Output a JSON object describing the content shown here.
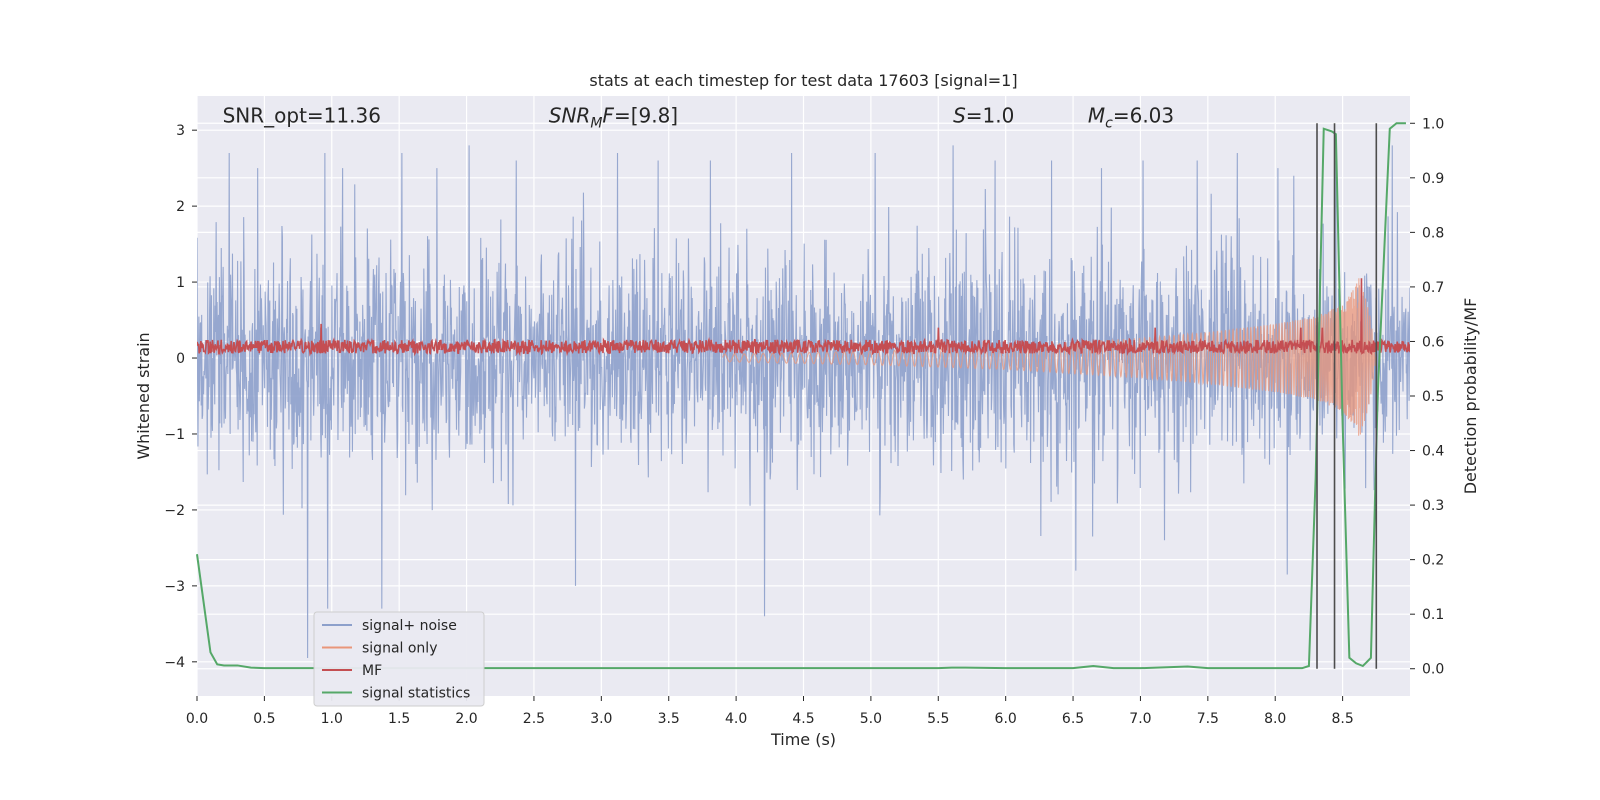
{
  "chart_data": {
    "type": "line",
    "title": "stats at each timestep for test data 17603 [signal=1]",
    "xlabel": "Time (s)",
    "ylabel": "Whitened strain",
    "y2label": "Detection probability/MF",
    "xlim": [
      0.0,
      9.0
    ],
    "ylim": [
      -4.45,
      3.45
    ],
    "y2lim": [
      -0.05,
      1.05
    ],
    "x_ticks": [
      0.0,
      0.5,
      1.0,
      1.5,
      2.0,
      2.5,
      3.0,
      3.5,
      4.0,
      4.5,
      5.0,
      5.5,
      6.0,
      6.5,
      7.0,
      7.5,
      8.0,
      8.5
    ],
    "x_tick_labels": [
      "0.0",
      "0.5",
      "1.0",
      "1.5",
      "2.0",
      "2.5",
      "3.0",
      "3.5",
      "4.0",
      "4.5",
      "5.0",
      "5.5",
      "6.0",
      "6.5",
      "7.0",
      "7.5",
      "8.0",
      "8.5"
    ],
    "y_ticks": [
      -4,
      -3,
      -2,
      -1,
      0,
      1,
      2,
      3
    ],
    "y_tick_labels": [
      "−4",
      "−3",
      "−2",
      "−1",
      "0",
      "1",
      "2",
      "3"
    ],
    "y2_ticks": [
      0.0,
      0.1,
      0.2,
      0.3,
      0.4,
      0.5,
      0.6,
      0.7,
      0.8,
      0.9,
      1.0
    ],
    "y2_tick_labels": [
      "0.0",
      "0.1",
      "0.2",
      "0.3",
      "0.4",
      "0.5",
      "0.6",
      "0.7",
      "0.8",
      "0.9",
      "1.0"
    ],
    "grid": true,
    "legend_position": "lower-left",
    "annotations": [
      {
        "name": "snr-opt",
        "parts": [
          {
            "text": "SNR_opt=11.36",
            "italic": false
          }
        ]
      },
      {
        "name": "snr-mf",
        "parts": [
          {
            "text": "SNR",
            "italic": true
          },
          {
            "text": "M",
            "italic": true,
            "sub": true
          },
          {
            "text": "F",
            "italic": true
          },
          {
            "text": "=[9.8]",
            "italic": false
          }
        ]
      },
      {
        "name": "s-value",
        "parts": [
          {
            "text": "S",
            "italic": true
          },
          {
            "text": "=1.0",
            "italic": false
          }
        ]
      },
      {
        "name": "chirp-mass",
        "parts": [
          {
            "text": "M",
            "italic": true
          },
          {
            "text": "c",
            "italic": true,
            "sub": true
          },
          {
            "text": "=6.03",
            "italic": false
          }
        ]
      }
    ],
    "annotation_x": [
      0.19,
      2.61,
      5.61,
      6.61
    ],
    "annotation_y": 3.1,
    "series": [
      {
        "name": "signal+ noise",
        "color": "#8da0cb",
        "axis": "left",
        "noise_sigma": 0.72,
        "t_start": 0.0,
        "t_end": 9.0,
        "spikes": [
          [
            0.82,
            -3.95
          ],
          [
            1.37,
            -3.3
          ],
          [
            4.21,
            -3.4
          ],
          [
            0.97,
            -3.3
          ],
          [
            2.81,
            -3.0
          ],
          [
            6.52,
            -2.8
          ],
          [
            8.09,
            -2.85
          ],
          [
            0.24,
            2.7
          ],
          [
            0.45,
            2.5
          ],
          [
            0.95,
            2.7
          ],
          [
            1.08,
            2.5
          ],
          [
            1.52,
            2.7
          ],
          [
            1.78,
            2.5
          ],
          [
            2.02,
            2.8
          ],
          [
            2.37,
            2.6
          ],
          [
            3.12,
            2.7
          ],
          [
            3.42,
            2.6
          ],
          [
            3.81,
            2.6
          ],
          [
            4.41,
            2.7
          ],
          [
            5.03,
            2.7
          ],
          [
            5.61,
            2.8
          ],
          [
            5.92,
            2.6
          ],
          [
            6.34,
            2.6
          ],
          [
            6.71,
            2.5
          ],
          [
            7.02,
            2.6
          ],
          [
            7.42,
            2.6
          ],
          [
            7.72,
            2.7
          ],
          [
            8.02,
            2.5
          ],
          [
            8.45,
            2.6
          ],
          [
            8.87,
            2.8
          ]
        ]
      },
      {
        "name": "signal only",
        "color": "#e9967a",
        "axis": "left",
        "chirp_start": 3.9,
        "chirp_peak": 8.62,
        "chirp_end": 8.75,
        "amplitude_max": 1.1,
        "t": [
          3.9,
          5.0,
          6.0,
          7.0,
          7.5,
          8.0,
          8.3,
          8.5,
          8.6,
          8.62,
          8.7,
          8.75
        ],
        "envelope": [
          0.05,
          0.09,
          0.15,
          0.26,
          0.34,
          0.45,
          0.55,
          0.7,
          0.95,
          1.1,
          0.6,
          0.0
        ]
      },
      {
        "name": "MF",
        "color": "#c44e52",
        "axis": "left",
        "baseline": 0.15,
        "jitter": 0.09,
        "t_start": 0.0,
        "t_end": 9.0,
        "spikes": [
          [
            0.92,
            0.45
          ],
          [
            5.5,
            0.4
          ],
          [
            7.11,
            0.4
          ],
          [
            8.19,
            0.4
          ],
          [
            8.35,
            0.4
          ],
          [
            8.64,
            1.05
          ]
        ]
      },
      {
        "name": "signal statistics",
        "color": "#55a868",
        "axis": "right",
        "x": [
          0.0,
          0.1,
          0.15,
          0.2,
          0.3,
          0.4,
          0.5,
          1.0,
          2.0,
          3.0,
          4.0,
          5.0,
          5.5,
          5.6,
          5.7,
          6.0,
          6.5,
          6.65,
          6.8,
          7.0,
          7.35,
          7.5,
          8.0,
          8.2,
          8.25,
          8.3,
          8.36,
          8.42,
          8.45,
          8.5,
          8.55,
          8.6,
          8.65,
          8.67,
          8.71,
          8.76,
          8.85,
          8.9,
          8.97
        ],
        "y": [
          0.21,
          0.03,
          0.008,
          0.006,
          0.006,
          0.002,
          0.001,
          0.001,
          0.001,
          0.001,
          0.001,
          0.001,
          0.001,
          0.002,
          0.002,
          0.001,
          0.001,
          0.005,
          0.001,
          0.001,
          0.004,
          0.001,
          0.001,
          0.001,
          0.005,
          0.35,
          0.99,
          0.985,
          0.98,
          0.45,
          0.02,
          0.01,
          0.005,
          0.01,
          0.02,
          0.5,
          0.99,
          1.0,
          1.0
        ]
      }
    ],
    "vertical_lines": {
      "color": "#4d4d4d",
      "x": [
        8.31,
        8.44,
        8.75
      ],
      "y2_top": 1.0,
      "y2_bottom": 0.0
    },
    "horizontal_right_grid": {
      "note_free": true
    }
  }
}
